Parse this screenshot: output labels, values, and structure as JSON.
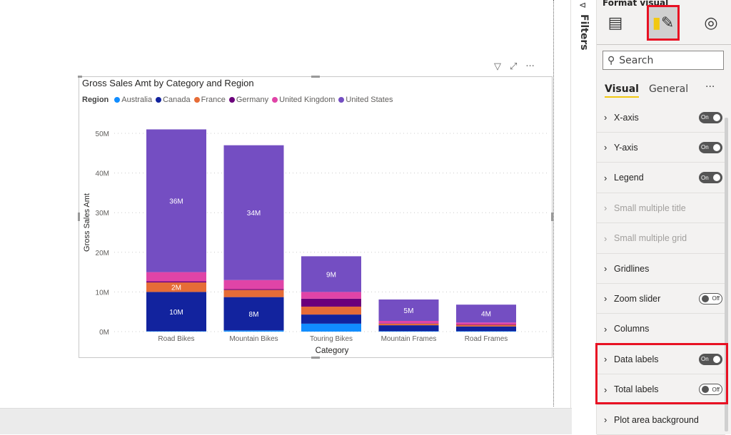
{
  "filters_pane": {
    "label": "Filters"
  },
  "visual": {
    "title": "Gross Sales Amt by Category and Region",
    "legend_title": "Region",
    "header_icons": [
      "filter-icon",
      "focus-mode-icon",
      "more-options-icon"
    ],
    "more_label": "···"
  },
  "chart_data": {
    "type": "bar",
    "stacked": true,
    "title": "Gross Sales Amt by Category and Region",
    "xlabel": "Category",
    "ylabel": "Gross Sales Amt",
    "ylim": [
      0,
      50
    ],
    "y_ticks": [
      "0M",
      "10M",
      "20M",
      "30M",
      "40M",
      "50M"
    ],
    "grid": true,
    "legend": "top-left",
    "categories": [
      "Road Bikes",
      "Mountain Bikes",
      "Touring Bikes",
      "Mountain Frames",
      "Road Frames"
    ],
    "series": [
      {
        "name": "Australia",
        "color": "#118dff",
        "values": [
          0.1,
          0.3,
          2.0,
          0.1,
          0.1
        ],
        "labels": [
          "",
          "",
          "",
          "",
          ""
        ]
      },
      {
        "name": "Canada",
        "color": "#12239e",
        "values": [
          9.9,
          8.4,
          2.3,
          1.5,
          1.2
        ],
        "labels": [
          "10M",
          "8M",
          "",
          "",
          ""
        ]
      },
      {
        "name": "France",
        "color": "#e66c37",
        "values": [
          2.4,
          1.8,
          2.0,
          0.4,
          0.4
        ],
        "labels": [
          "2M",
          "",
          "",
          "",
          ""
        ]
      },
      {
        "name": "Germany",
        "color": "#6b007b",
        "values": [
          0.3,
          0.2,
          2.0,
          0.1,
          0.1
        ],
        "labels": [
          "",
          "",
          "",
          "",
          ""
        ]
      },
      {
        "name": "United Kingdom",
        "color": "#e044a7",
        "values": [
          2.3,
          2.3,
          1.7,
          0.6,
          0.5
        ],
        "labels": [
          "",
          "",
          "",
          "",
          ""
        ]
      },
      {
        "name": "United States",
        "color": "#744ec2",
        "values": [
          36.0,
          34.0,
          9.0,
          5.4,
          4.5
        ],
        "labels": [
          "36M",
          "34M",
          "9M",
          "5M",
          "4M"
        ]
      }
    ],
    "units": "M"
  },
  "format_pane": {
    "title": "Format visual",
    "tabs": [
      {
        "icon": "build-visual-icon"
      },
      {
        "icon": "format-paintbrush-icon",
        "selected": true
      },
      {
        "icon": "analytics-icon"
      }
    ],
    "search_placeholder": "Search",
    "subtabs": [
      "Visual",
      "General"
    ],
    "more": "···",
    "sections": [
      {
        "label": "X-axis",
        "toggle": "On",
        "enabled": true
      },
      {
        "label": "Y-axis",
        "toggle": "On",
        "enabled": true
      },
      {
        "label": "Legend",
        "toggle": "On",
        "enabled": true
      },
      {
        "label": "Small multiple title",
        "toggle": null,
        "enabled": false
      },
      {
        "label": "Small multiple grid",
        "toggle": null,
        "enabled": false
      },
      {
        "label": "Gridlines",
        "toggle": null,
        "enabled": true
      },
      {
        "label": "Zoom slider",
        "toggle": "Off",
        "enabled": true
      },
      {
        "label": "Columns",
        "toggle": null,
        "enabled": true
      },
      {
        "label": "Data labels",
        "toggle": "On",
        "enabled": true,
        "highlighted": true
      },
      {
        "label": "Total labels",
        "toggle": "Off",
        "enabled": true,
        "highlighted": true
      },
      {
        "label": "Plot area background",
        "toggle": null,
        "enabled": true
      }
    ],
    "highlight_color": "#e81123",
    "accent": "#f2c811"
  }
}
